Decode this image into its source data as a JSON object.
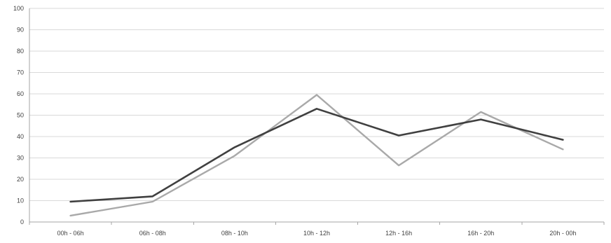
{
  "chart_data": {
    "type": "line",
    "categories": [
      "00h - 06h",
      "06h - 08h",
      "08h - 10h",
      "10h - 12h",
      "12h - 16h",
      "16h - 20h",
      "20h - 00h"
    ],
    "series": [
      {
        "values": [
          3,
          9.5,
          31,
          59.5,
          26.5,
          51.5,
          34
        ],
        "color": "#a9a9a9"
      },
      {
        "values": [
          9.5,
          12,
          35,
          53,
          40.5,
          48,
          38.5
        ],
        "color": "#404040"
      }
    ],
    "ylim": [
      0,
      100
    ],
    "yticks": [
      0,
      10,
      20,
      30,
      40,
      50,
      60,
      70,
      80,
      90,
      100
    ],
    "grid": true,
    "title": "",
    "xlabel": "",
    "ylabel": ""
  }
}
